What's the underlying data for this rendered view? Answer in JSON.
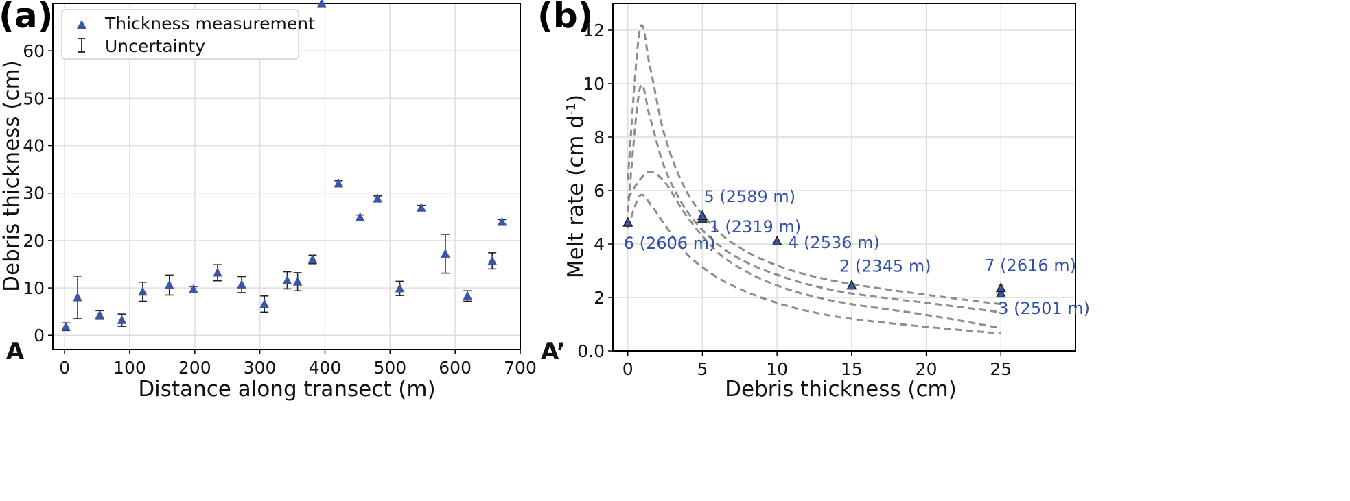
{
  "colors": {
    "marker": "#3a56a8",
    "curve": "#8c8c8c",
    "annotation": "#2f4fa8",
    "errorbar": "#222222"
  },
  "chart_data": [
    {
      "panel": "(a)",
      "type": "scatter",
      "xlabel": "Distance along transect (m)",
      "ylabel": "Debris thickness (cm)",
      "xlim": [
        -18,
        700
      ],
      "ylim": [
        -3,
        70
      ],
      "xticks": [
        0,
        100,
        200,
        300,
        400,
        500,
        600,
        700
      ],
      "yticks": [
        0,
        10,
        20,
        30,
        40,
        50,
        60
      ],
      "grid": true,
      "start_label": "A",
      "legend": {
        "position": "top-left",
        "entries": [
          "Thickness measurement",
          "Uncertainty"
        ]
      },
      "series": [
        {
          "name": "Thickness measurement",
          "x": [
            2,
            20,
            54,
            88,
            120,
            161,
            198,
            235,
            272,
            307,
            342,
            358,
            381,
            395,
            421,
            454,
            481,
            515,
            548,
            585,
            619,
            657,
            672
          ],
          "y": [
            1.8,
            8,
            4.3,
            3.2,
            9.2,
            10.6,
            9.7,
            13.2,
            10.7,
            6.6,
            11.6,
            11.3,
            16,
            70,
            32,
            24.9,
            28.8,
            9.9,
            26.9,
            17.2,
            8.3,
            15.7,
            23.9
          ],
          "yerr": [
            0.8,
            4.5,
            0.9,
            1.3,
            2.0,
            2.1,
            0.6,
            1.7,
            1.7,
            1.7,
            1.8,
            1.9,
            0.9,
            0.3,
            0.6,
            0.5,
            0.6,
            1.5,
            0.5,
            4.1,
            1.1,
            1.7,
            0.5
          ]
        }
      ]
    },
    {
      "panel": "(b)",
      "type": "line",
      "xlabel": "Debris thickness (cm)",
      "ylabel_main": "Melt rate (cm d",
      "ylabel_sup": "-1",
      "ylabel_close": ")",
      "xlim": [
        -1,
        30
      ],
      "ylim": [
        0,
        13
      ],
      "xticks": [
        0,
        5,
        10,
        15,
        20,
        25
      ],
      "yticks": [
        0.0,
        2,
        4,
        6,
        8,
        10,
        12
      ],
      "ytick_labels": [
        "0.0",
        "2",
        "4",
        "6",
        "8",
        "10",
        "12"
      ],
      "grid": true,
      "start_label": "A’",
      "curves": [
        {
          "x": [
            0,
            0.8,
            1.5,
            2.5,
            4,
            6,
            8,
            10,
            12,
            15,
            20,
            25
          ],
          "y": [
            6.4,
            12.0,
            10.6,
            8.0,
            5.9,
            4.5,
            3.7,
            3.2,
            2.85,
            2.5,
            2.1,
            1.75
          ]
        },
        {
          "x": [
            0,
            0.8,
            1.5,
            2.5,
            4,
            6,
            8,
            10,
            12,
            15,
            20,
            25
          ],
          "y": [
            5.2,
            9.8,
            8.7,
            6.8,
            5.2,
            4.0,
            3.3,
            2.85,
            2.5,
            2.15,
            1.8,
            1.45
          ]
        },
        {
          "x": [
            0,
            0.8,
            1.5,
            2.5,
            4,
            6,
            8,
            10,
            12,
            15,
            20,
            25
          ],
          "y": [
            5.7,
            6.4,
            6.7,
            6.3,
            5.0,
            3.7,
            2.95,
            2.45,
            2.1,
            1.75,
            1.35,
            0.85
          ]
        },
        {
          "x": [
            0,
            0.8,
            1.5,
            2.5,
            4,
            6,
            8,
            10,
            12,
            15,
            20,
            25
          ],
          "y": [
            4.6,
            5.8,
            5.5,
            4.7,
            3.6,
            2.75,
            2.2,
            1.8,
            1.5,
            1.2,
            0.9,
            0.65
          ]
        }
      ],
      "points": [
        {
          "label": "1 (2319 m)",
          "x": 5,
          "y": 4.95
        },
        {
          "label": "2 (2345 m)",
          "x": 15,
          "y": 2.45
        },
        {
          "label": "3 (2501 m)",
          "x": 25,
          "y": 2.15
        },
        {
          "label": "4 (2536 m)",
          "x": 10,
          "y": 4.1
        },
        {
          "label": "5 (2589 m)",
          "x": 5,
          "y": 5.05
        },
        {
          "label": "6 (2606 m)",
          "x": 0,
          "y": 4.8
        },
        {
          "label": "7 (2616 m)",
          "x": 25,
          "y": 2.35
        }
      ]
    }
  ]
}
